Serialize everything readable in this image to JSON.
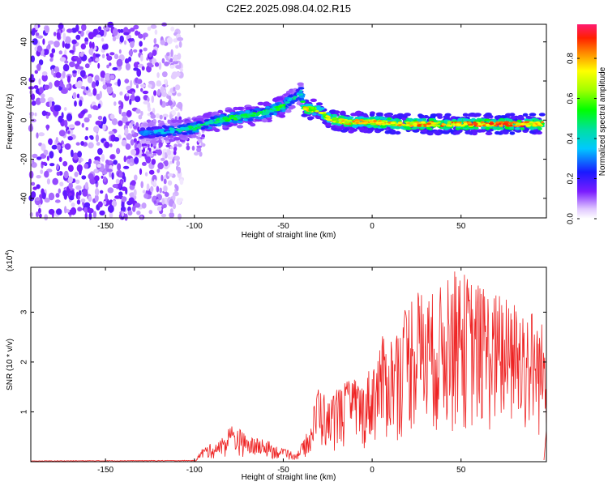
{
  "title": "C2E2.2025.098.04.02.R15",
  "chart_data": [
    {
      "type": "heatmap",
      "xlabel": "Height of straight line (km)",
      "ylabel": "Frequency (Hz)",
      "xlim": [
        -192,
        98
      ],
      "ylim": [
        -50,
        49
      ],
      "xticks": [
        -150,
        -100,
        -50,
        0,
        50
      ],
      "yticks": [
        -40,
        -20,
        0,
        20,
        40
      ],
      "colorbar": {
        "label": "Normalized spectral amplitude",
        "range": [
          0,
          0.97
        ],
        "ticks": [
          0.0,
          0.2,
          0.4,
          0.6,
          0.8
        ]
      },
      "noise_region_x": [
        -192,
        -107
      ],
      "ridge": [
        {
          "x": -130,
          "y": -7,
          "amp": 0.35
        },
        {
          "x": -120,
          "y": -6,
          "amp": 0.4
        },
        {
          "x": -110,
          "y": -5,
          "amp": 0.5
        },
        {
          "x": -100,
          "y": -4,
          "amp": 0.55
        },
        {
          "x": -90,
          "y": -1,
          "amp": 0.55
        },
        {
          "x": -80,
          "y": 1,
          "amp": 0.6
        },
        {
          "x": -70,
          "y": 2,
          "amp": 0.6
        },
        {
          "x": -60,
          "y": 4,
          "amp": 0.55
        },
        {
          "x": -50,
          "y": 7,
          "amp": 0.6
        },
        {
          "x": -45,
          "y": 11,
          "amp": 0.5
        },
        {
          "x": -40,
          "y": 14,
          "amp": 0.45
        },
        {
          "x": -38,
          "y": 6,
          "amp": 0.85
        },
        {
          "x": -30,
          "y": 5,
          "amp": 0.75
        },
        {
          "x": -25,
          "y": 1,
          "amp": 0.85
        },
        {
          "x": -15,
          "y": -1,
          "amp": 0.85
        },
        {
          "x": 0,
          "y": -1,
          "amp": 0.9
        },
        {
          "x": 20,
          "y": -2,
          "amp": 0.9
        },
        {
          "x": 40,
          "y": -2,
          "amp": 0.95
        },
        {
          "x": 60,
          "y": -2,
          "amp": 0.95
        },
        {
          "x": 80,
          "y": -2,
          "amp": 0.95
        },
        {
          "x": 96,
          "y": -2,
          "amp": 0.9
        }
      ]
    },
    {
      "type": "line",
      "xlabel": "Height of straight line (km)",
      "ylabel": "SNR (10 * v/v)",
      "yscale_label": "(x10",
      "yscale_exp": "4",
      "yscale_close": ")",
      "xlim": [
        -192,
        98
      ],
      "ylim": [
        0,
        3.9
      ],
      "xticks": [
        -150,
        -100,
        -50,
        0,
        50
      ],
      "yticks": [
        1,
        2,
        3
      ],
      "color": "#ee2222",
      "envelope": [
        {
          "x": -192,
          "y": 0.02
        },
        {
          "x": -100,
          "y": 0.03
        },
        {
          "x": -95,
          "y": 0.3
        },
        {
          "x": -85,
          "y": 0.45
        },
        {
          "x": -78,
          "y": 0.8
        },
        {
          "x": -70,
          "y": 0.5
        },
        {
          "x": -60,
          "y": 0.45
        },
        {
          "x": -50,
          "y": 0.25
        },
        {
          "x": -42,
          "y": 0.2
        },
        {
          "x": -35,
          "y": 0.7
        },
        {
          "x": -30,
          "y": 1.7
        },
        {
          "x": -25,
          "y": 1.2
        },
        {
          "x": -20,
          "y": 1.5
        },
        {
          "x": -10,
          "y": 1.7
        },
        {
          "x": -5,
          "y": 1.6
        },
        {
          "x": 5,
          "y": 2.5
        },
        {
          "x": 15,
          "y": 2.7
        },
        {
          "x": 22,
          "y": 3.5
        },
        {
          "x": 35,
          "y": 3.4
        },
        {
          "x": 48,
          "y": 3.9
        },
        {
          "x": 60,
          "y": 3.6
        },
        {
          "x": 75,
          "y": 3.3
        },
        {
          "x": 90,
          "y": 3.1
        },
        {
          "x": 98,
          "y": 2.7
        }
      ]
    }
  ]
}
